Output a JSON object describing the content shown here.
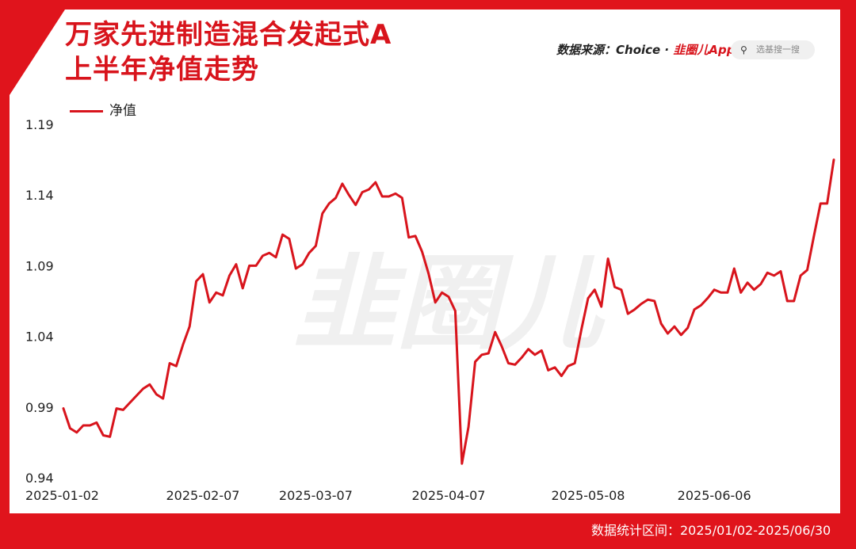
{
  "title": {
    "line1": "万家先进制造混合发起式A",
    "line2": "上半年净值走势"
  },
  "source": {
    "prefix": "数据来源：",
    "name": "Choice · ",
    "brand": "韭圈儿App"
  },
  "search": {
    "placeholder": "选基搜一搜",
    "icon": "search-icon"
  },
  "watermark": "韭圈儿",
  "footer": {
    "text": "数据统计区间：2025/01/02-2025/06/30"
  },
  "colors": {
    "accent": "#e0141c",
    "line": "#d8141c"
  },
  "chart_data": {
    "type": "line",
    "title": "万家先进制造混合发起式A上半年净值走势",
    "xlabel": "",
    "ylabel": "",
    "ylim": [
      0.94,
      1.19
    ],
    "y_ticks": [
      "1.19",
      "1.14",
      "1.09",
      "1.04",
      "0.99",
      "0.94"
    ],
    "y_tick_values": [
      1.19,
      1.14,
      1.09,
      1.04,
      0.99,
      0.94
    ],
    "x_ticks": [
      "2025-01-02",
      "2025-02-07",
      "2025-03-07",
      "2025-04-07",
      "2025-05-08",
      "2025-06-06"
    ],
    "grid": false,
    "legend": "top-left",
    "series": [
      {
        "name": "净值",
        "color": "#d8141c",
        "values": [
          0.989,
          0.975,
          0.972,
          0.977,
          0.977,
          0.979,
          0.97,
          0.969,
          0.989,
          0.988,
          0.993,
          0.998,
          1.003,
          1.006,
          0.999,
          0.996,
          1.021,
          1.019,
          1.034,
          1.047,
          1.079,
          1.084,
          1.064,
          1.071,
          1.069,
          1.083,
          1.091,
          1.074,
          1.09,
          1.09,
          1.097,
          1.099,
          1.096,
          1.112,
          1.109,
          1.088,
          1.091,
          1.099,
          1.104,
          1.127,
          1.134,
          1.138,
          1.148,
          1.14,
          1.133,
          1.142,
          1.144,
          1.149,
          1.139,
          1.139,
          1.141,
          1.138,
          1.11,
          1.111,
          1.1,
          1.084,
          1.064,
          1.071,
          1.068,
          1.058,
          0.95,
          0.976,
          1.022,
          1.027,
          1.028,
          1.043,
          1.033,
          1.021,
          1.02,
          1.025,
          1.031,
          1.027,
          1.03,
          1.016,
          1.018,
          1.012,
          1.019,
          1.021,
          1.045,
          1.067,
          1.073,
          1.061,
          1.095,
          1.075,
          1.073,
          1.056,
          1.059,
          1.063,
          1.066,
          1.065,
          1.049,
          1.042,
          1.047,
          1.041,
          1.046,
          1.059,
          1.062,
          1.067,
          1.073,
          1.071,
          1.071,
          1.088,
          1.071,
          1.078,
          1.073,
          1.077,
          1.085,
          1.083,
          1.086,
          1.065,
          1.065,
          1.083,
          1.087,
          1.111,
          1.134,
          1.134,
          1.165
        ],
        "x_tick_indices": [
          0,
          21,
          38,
          58,
          79,
          98
        ]
      }
    ]
  }
}
